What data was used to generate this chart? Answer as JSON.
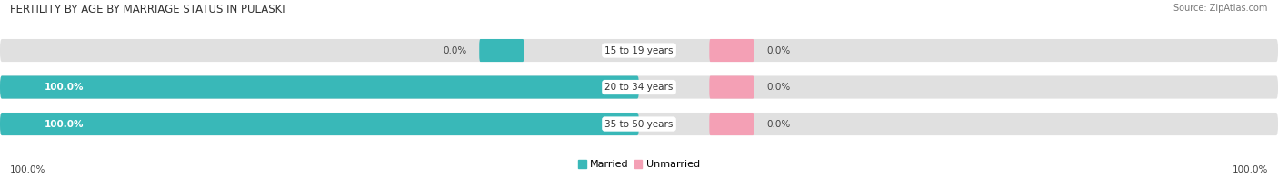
{
  "title": "FERTILITY BY AGE BY MARRIAGE STATUS IN PULASKI",
  "source": "Source: ZipAtlas.com",
  "categories": [
    "15 to 19 years",
    "20 to 34 years",
    "35 to 50 years"
  ],
  "married_values": [
    0.0,
    100.0,
    100.0
  ],
  "unmarried_values": [
    0.0,
    0.0,
    0.0
  ],
  "married_color": "#39b8b8",
  "unmarried_color": "#f4a0b5",
  "bar_bg_color": "#e0e0e0",
  "bar_height": 0.62,
  "small_bar_width": 7.0,
  "title_fontsize": 8.5,
  "label_fontsize": 7.5,
  "tick_fontsize": 7.5,
  "legend_fontsize": 8,
  "source_fontsize": 7,
  "xlim_left": -100,
  "xlim_right": 100
}
